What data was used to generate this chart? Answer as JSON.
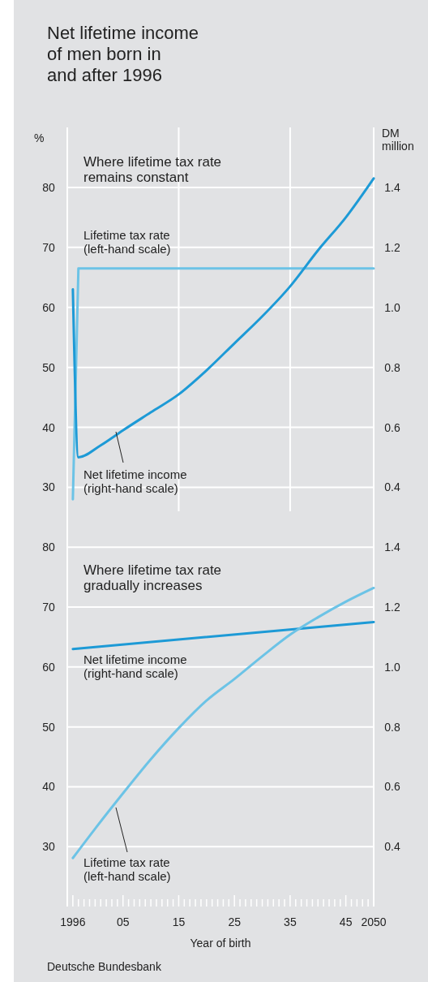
{
  "chart_data": [
    {
      "type": "line",
      "title": "Net lifetime income\nof men born in\nand after 1996",
      "ylabel": "%",
      "y2label": "DM million",
      "annotations": [
        "Where lifetime tax rate remains constant"
      ],
      "xlim": [
        1995,
        2050
      ],
      "xticks": [
        {
          "value": 2015,
          "label": null
        },
        {
          "value": 2035,
          "label": null
        }
      ],
      "ylim": [
        26,
        90
      ],
      "yticks": [
        30,
        40,
        50,
        60,
        70,
        80
      ],
      "y2lim": [
        0.32,
        1.6
      ],
      "y2ticks": [
        0.4,
        0.6,
        0.8,
        {
          "value": 1.0,
          "label": "1.0"
        },
        1.2,
        1.4
      ],
      "grid": true,
      "tick_labels": "y",
      "series": [
        {
          "name": "Lifetime tax rate (left-hand scale)",
          "color": "#6cc3e6",
          "x": [
            1996,
            1997,
            2050
          ],
          "values": [
            28,
            66.5,
            66.5
          ]
        },
        {
          "name": "Net lifetime income (right-hand scale)",
          "color": "#1d9ad6",
          "axis": "y2",
          "x": [
            1996,
            1997,
            2001,
            2005,
            2010,
            2015,
            2020,
            2025,
            2030,
            2035,
            2040,
            2045,
            2050
          ],
          "values": [
            1.06,
            0.5,
            0.54,
            0.59,
            0.65,
            0.71,
            0.79,
            0.88,
            0.97,
            1.07,
            1.19,
            1.3,
            1.43
          ]
        }
      ]
    },
    {
      "type": "line",
      "xlabel": "Year of birth",
      "annotations": [
        "Where lifetime tax rate gradually increases",
        "Deutsche Bundesbank"
      ],
      "xlim": [
        1995,
        2050
      ],
      "xticks": [
        {
          "value": 1996,
          "label": "1996"
        },
        {
          "value": 1997,
          "label": null
        },
        {
          "value": 1998,
          "label": null
        },
        {
          "value": 1999,
          "label": null
        },
        {
          "value": 2000,
          "label": null
        },
        {
          "value": 2001,
          "label": null
        },
        {
          "value": 2002,
          "label": null
        },
        {
          "value": 2003,
          "label": null
        },
        {
          "value": 2004,
          "label": null
        },
        {
          "value": 2005,
          "label": "05"
        },
        {
          "value": 2006,
          "label": null
        },
        {
          "value": 2007,
          "label": null
        },
        {
          "value": 2008,
          "label": null
        },
        {
          "value": 2009,
          "label": null
        },
        {
          "value": 2010,
          "label": null
        },
        {
          "value": 2011,
          "label": null
        },
        {
          "value": 2012,
          "label": null
        },
        {
          "value": 2013,
          "label": null
        },
        {
          "value": 2014,
          "label": null
        },
        {
          "value": 2015,
          "label": "15"
        },
        {
          "value": 2016,
          "label": null
        },
        {
          "value": 2017,
          "label": null
        },
        {
          "value": 2018,
          "label": null
        },
        {
          "value": 2019,
          "label": null
        },
        {
          "value": 2020,
          "label": null
        },
        {
          "value": 2021,
          "label": null
        },
        {
          "value": 2022,
          "label": null
        },
        {
          "value": 2023,
          "label": null
        },
        {
          "value": 2024,
          "label": null
        },
        {
          "value": 2025,
          "label": "25"
        },
        {
          "value": 2026,
          "label": null
        },
        {
          "value": 2027,
          "label": null
        },
        {
          "value": 2028,
          "label": null
        },
        {
          "value": 2029,
          "label": null
        },
        {
          "value": 2030,
          "label": null
        },
        {
          "value": 2031,
          "label": null
        },
        {
          "value": 2032,
          "label": null
        },
        {
          "value": 2033,
          "label": null
        },
        {
          "value": 2034,
          "label": null
        },
        {
          "value": 2035,
          "label": "35"
        },
        {
          "value": 2036,
          "label": null
        },
        {
          "value": 2037,
          "label": null
        },
        {
          "value": 2038,
          "label": null
        },
        {
          "value": 2039,
          "label": null
        },
        {
          "value": 2040,
          "label": null
        },
        {
          "value": 2041,
          "label": null
        },
        {
          "value": 2042,
          "label": null
        },
        {
          "value": 2043,
          "label": null
        },
        {
          "value": 2044,
          "label": null
        },
        {
          "value": 2045,
          "label": "45"
        },
        {
          "value": 2046,
          "label": null
        },
        {
          "value": 2047,
          "label": null
        },
        {
          "value": 2048,
          "label": null
        },
        {
          "value": 2049,
          "label": null
        },
        {
          "value": 2050,
          "label": "2050"
        }
      ],
      "ylim": [
        20,
        86
      ],
      "yticks": [
        30,
        40,
        50,
        60,
        70,
        80
      ],
      "y2lim": [
        0.2,
        1.52
      ],
      "y2ticks": [
        0.4,
        0.6,
        0.8,
        {
          "value": 1.0,
          "label": "1.0"
        },
        1.2,
        1.4
      ],
      "grid": "y",
      "series": [
        {
          "name": "Net lifetime income (right-hand scale)",
          "color": "#1d9ad6",
          "axis": "y2",
          "x": [
            1996,
            2050
          ],
          "values": [
            1.06,
            1.15
          ]
        },
        {
          "name": "Lifetime tax rate (left-hand scale)",
          "color": "#6cc3e6",
          "x": [
            1996,
            2000,
            2005,
            2010,
            2015,
            2020,
            2025,
            2030,
            2035,
            2040,
            2045,
            2050
          ],
          "values": [
            28.1,
            33,
            38.9,
            44.6,
            49.8,
            54.4,
            58.0,
            61.8,
            65.4,
            68.3,
            70.9,
            73.2
          ]
        }
      ]
    }
  ]
}
